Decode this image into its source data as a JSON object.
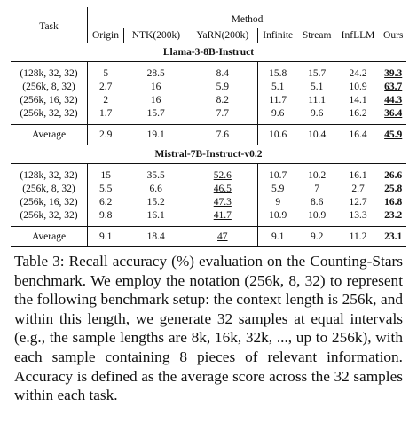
{
  "table": {
    "header": {
      "task": "Task",
      "method": "Method",
      "columns": [
        "Origin",
        "NTK(200k)",
        "YaRN(200k)",
        "Infinite",
        "Stream",
        "InfLLM",
        "Ours"
      ]
    },
    "sections": [
      {
        "title": "Llama-3-8B-Instruct",
        "rows": [
          {
            "task": "(128k, 32, 32)",
            "values": [
              "5",
              "28.5",
              "8.4",
              "15.8",
              "15.7",
              "24.2",
              "39.3"
            ]
          },
          {
            "task": "(256k, 8, 32)",
            "values": [
              "2.7",
              "16",
              "5.9",
              "5.1",
              "5.1",
              "10.9",
              "63.7"
            ]
          },
          {
            "task": "(256k, 16, 32)",
            "values": [
              "2",
              "16",
              "8.2",
              "11.7",
              "11.1",
              "14.1",
              "44.3"
            ]
          },
          {
            "task": "(256k, 32, 32)",
            "values": [
              "1.7",
              "15.7",
              "7.7",
              "9.6",
              "9.6",
              "16.2",
              "36.4"
            ]
          }
        ],
        "average": {
          "task": "Average",
          "values": [
            "2.9",
            "19.1",
            "7.6",
            "10.6",
            "10.4",
            "16.4",
            "45.9"
          ]
        }
      },
      {
        "title": "Mistral-7B-Instruct-v0.2",
        "rows": [
          {
            "task": "(128k, 32, 32)",
            "values": [
              "15",
              "35.5",
              "52.6",
              "10.7",
              "10.2",
              "16.1",
              "26.6"
            ]
          },
          {
            "task": "(256k, 8, 32)",
            "values": [
              "5.5",
              "6.6",
              "46.5",
              "5.9",
              "7",
              "2.7",
              "25.8"
            ]
          },
          {
            "task": "(256k, 16, 32)",
            "values": [
              "6.2",
              "15.2",
              "47.3",
              "9",
              "8.6",
              "12.7",
              "16.8"
            ]
          },
          {
            "task": "(256k, 32, 32)",
            "values": [
              "9.8",
              "16.1",
              "41.7",
              "10.9",
              "10.9",
              "13.3",
              "23.2"
            ]
          }
        ],
        "average": {
          "task": "Average",
          "values": [
            "9.1",
            "18.4",
            "47",
            "9.1",
            "9.2",
            "11.2",
            "23.1"
          ]
        }
      }
    ]
  },
  "caption": "Table 3: Recall accuracy (%) evaluation on the Counting-Stars benchmark. We employ the notation (256k, 8, 32) to represent the following benchmark setup: the context length is 256k, and within this length, we generate 32 samples at equal intervals (e.g., the sample lengths are 8k, 16k, 32k, ..., up to 256k), with each sample containing 8 pieces of relevant information. Accuracy is defined as the average score across the 32 samples within each task."
}
